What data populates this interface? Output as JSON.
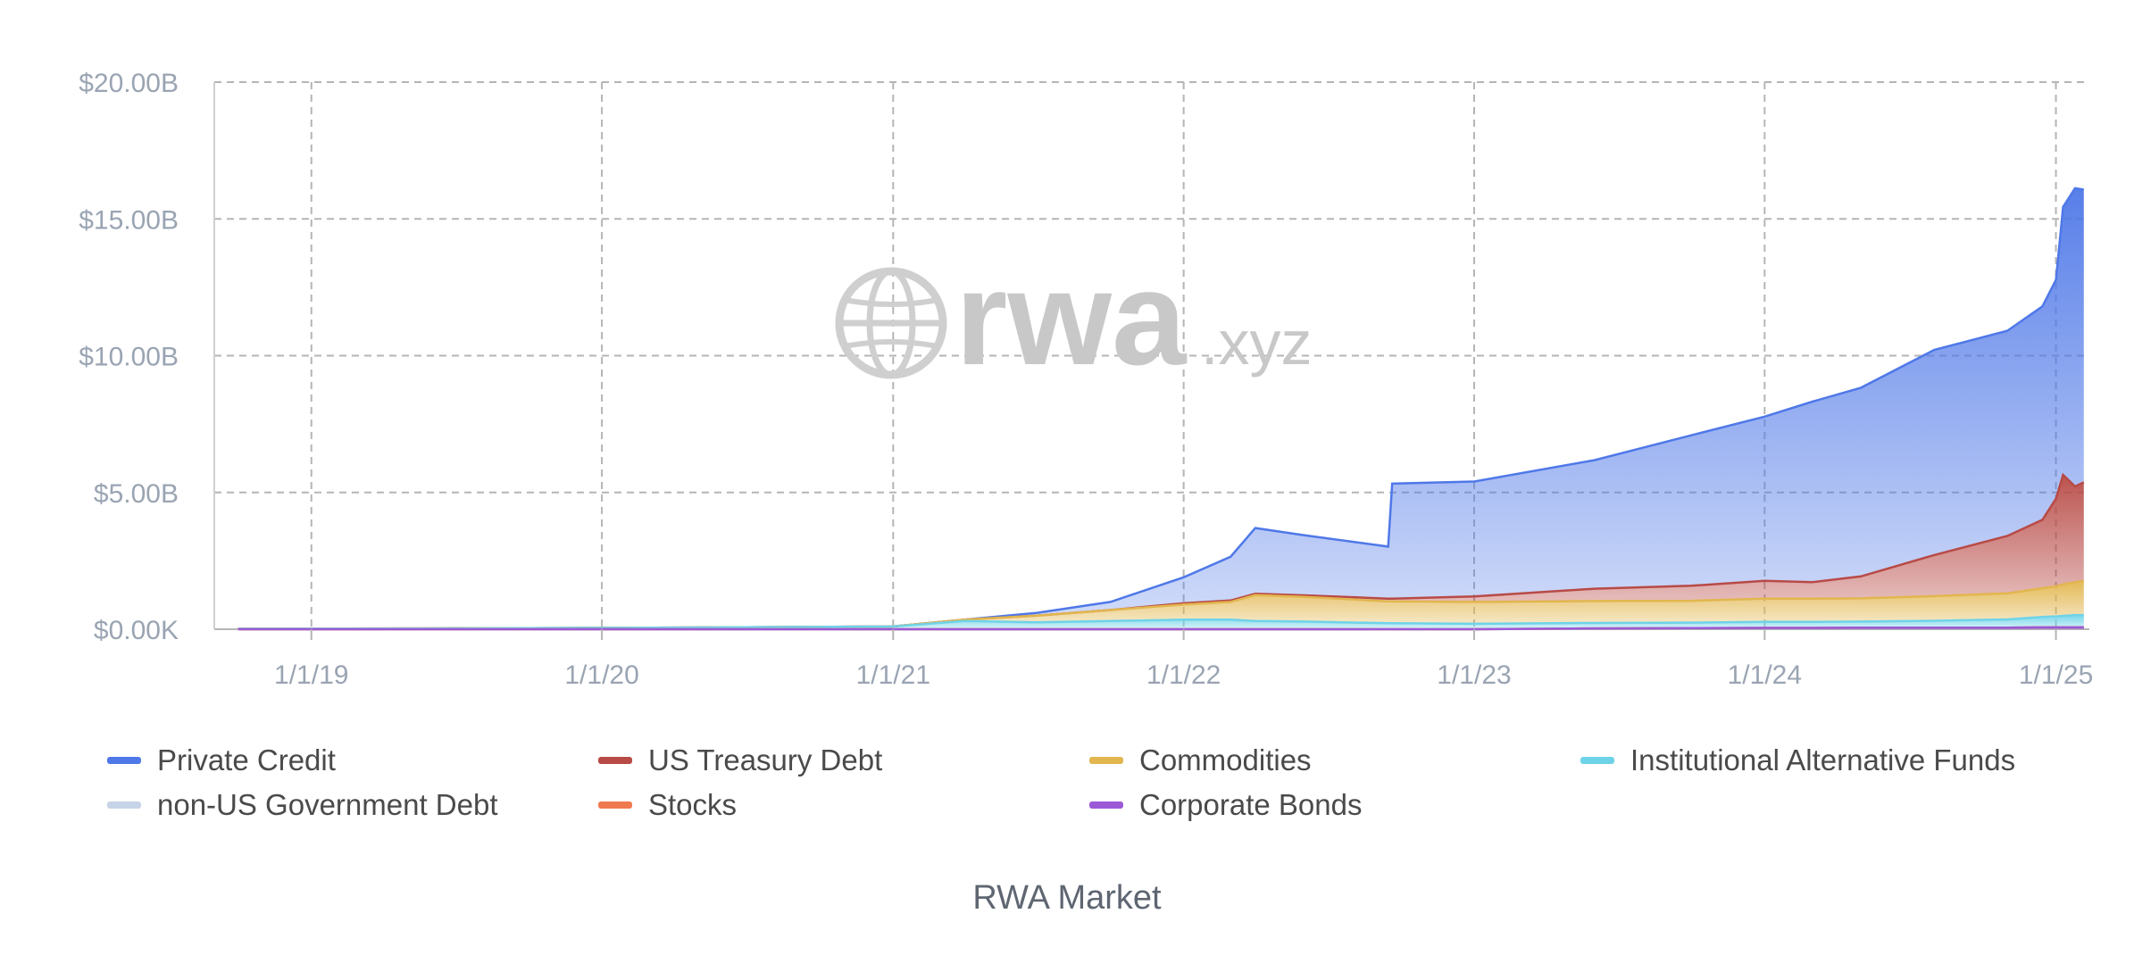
{
  "caption": "RWA Market",
  "watermark": {
    "brand": "rwa",
    "suffix": ".xyz",
    "icon": "globe-icon"
  },
  "chart_data": {
    "type": "area",
    "stacked": true,
    "grid": true,
    "legend_position": "bottom",
    "x_ticks": [
      "1/1/19",
      "1/1/20",
      "1/1/21",
      "1/1/22",
      "1/1/23",
      "1/1/24",
      "1/1/25"
    ],
    "y_ticks": [
      "$0.00K",
      "$5.00B",
      "$10.00B",
      "$15.00B",
      "$20.00B"
    ],
    "ylim": [
      0,
      20
    ],
    "y_unit": "B USD",
    "x": [
      "2018-10-01",
      "2019-06-01",
      "2020-01-01",
      "2020-06-01",
      "2021-01-01",
      "2021-04-01",
      "2021-07-01",
      "2021-10-01",
      "2022-01-01",
      "2022-03-01",
      "2022-04-01",
      "2022-06-01",
      "2022-09-15",
      "2022-09-20",
      "2023-01-01",
      "2023-06-01",
      "2023-10-01",
      "2024-01-01",
      "2024-03-01",
      "2024-05-01",
      "2024-08-01",
      "2024-11-01",
      "2024-12-15",
      "2025-01-01",
      "2025-01-10",
      "2025-01-25",
      "2025-02-05"
    ],
    "series": [
      {
        "name": "Corporate Bonds",
        "color": "#9b59d6",
        "values": [
          0,
          0,
          0,
          0,
          0,
          0,
          0,
          0,
          0,
          0,
          0,
          0,
          0,
          0,
          0,
          0.03,
          0.04,
          0.05,
          0.05,
          0.06,
          0.06,
          0.06,
          0.07,
          0.07,
          0.07,
          0.07,
          0.07
        ]
      },
      {
        "name": "Stocks",
        "color": "#f07a4f",
        "values": [
          0,
          0,
          0,
          0,
          0,
          0,
          0,
          0,
          0,
          0,
          0,
          0,
          0,
          0,
          0,
          0,
          0,
          0,
          0,
          0,
          0,
          0,
          0,
          0,
          0,
          0,
          0
        ]
      },
      {
        "name": "non-US Government Debt",
        "color": "#c7d3e6",
        "values": [
          0,
          0,
          0,
          0,
          0,
          0,
          0,
          0,
          0,
          0,
          0,
          0,
          0,
          0,
          0,
          0,
          0,
          0,
          0,
          0,
          0,
          0,
          0,
          0,
          0,
          0,
          0
        ]
      },
      {
        "name": "Institutional Alternative Funds",
        "color": "#6fd3e8",
        "values": [
          0.02,
          0.03,
          0.05,
          0.07,
          0.1,
          0.3,
          0.25,
          0.3,
          0.35,
          0.35,
          0.3,
          0.28,
          0.22,
          0.22,
          0.2,
          0.2,
          0.2,
          0.22,
          0.22,
          0.22,
          0.25,
          0.3,
          0.38,
          0.4,
          0.42,
          0.45,
          0.45
        ]
      },
      {
        "name": "Commodities",
        "color": "#e2b64e",
        "values": [
          0,
          0,
          0,
          0,
          0,
          0.05,
          0.25,
          0.4,
          0.55,
          0.65,
          0.95,
          0.9,
          0.8,
          0.8,
          0.8,
          0.8,
          0.8,
          0.85,
          0.85,
          0.85,
          0.9,
          0.95,
          1.05,
          1.1,
          1.15,
          1.2,
          1.25
        ]
      },
      {
        "name": "US Treasury Debt",
        "color": "#b84a46",
        "values": [
          0,
          0,
          0,
          0,
          0,
          0,
          0,
          0,
          0.05,
          0.05,
          0.05,
          0.06,
          0.1,
          0.1,
          0.2,
          0.45,
          0.55,
          0.65,
          0.6,
          0.8,
          1.5,
          2.1,
          2.5,
          3.2,
          4.0,
          3.5,
          3.6
        ]
      },
      {
        "name": "Private Credit",
        "color": "#4f78e8",
        "values": [
          0,
          0,
          0,
          0,
          0,
          0,
          0.1,
          0.3,
          0.95,
          1.6,
          2.4,
          2.2,
          1.9,
          4.2,
          4.2,
          4.7,
          5.5,
          6.0,
          6.6,
          6.9,
          7.5,
          7.5,
          7.8,
          8.0,
          9.8,
          10.9,
          10.7
        ]
      }
    ],
    "legend_order": [
      "Private Credit",
      "US Treasury Debt",
      "Commodities",
      "Institutional Alternative Funds",
      "non-US Government Debt",
      "Stocks",
      "Corporate Bonds"
    ]
  }
}
